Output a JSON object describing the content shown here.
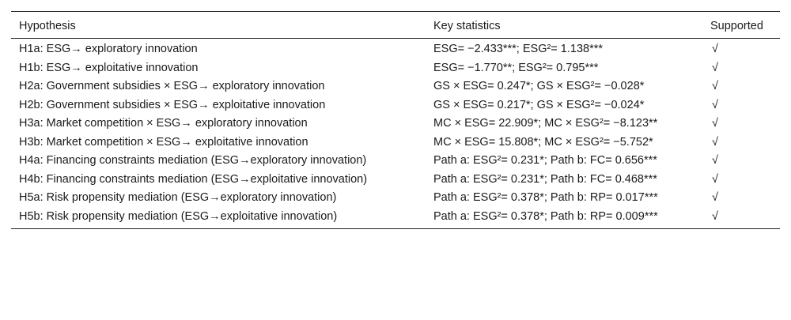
{
  "table": {
    "headers": {
      "hypothesis": "Hypothesis",
      "statistics": "Key statistics",
      "supported": "Supported"
    },
    "rows": [
      {
        "hypothesis": "H1a: ESG→ exploratory innovation",
        "statistics": "ESG= −2.433***; ESG²= 1.138***",
        "supported": "√"
      },
      {
        "hypothesis": "H1b: ESG→ exploitative innovation",
        "statistics": "ESG= −1.770**; ESG²= 0.795***",
        "supported": "√"
      },
      {
        "hypothesis": "H2a: Government subsidies × ESG→ exploratory innovation",
        "statistics": "GS × ESG= 0.247*; GS × ESG²= −0.028*",
        "supported": "√"
      },
      {
        "hypothesis": "H2b: Government subsidies × ESG→ exploitative innovation",
        "statistics": "GS × ESG= 0.217*; GS × ESG²= −0.024*",
        "supported": "√"
      },
      {
        "hypothesis": "H3a: Market competition × ESG→ exploratory innovation",
        "statistics": "MC × ESG= 22.909*; MC × ESG²= −8.123**",
        "supported": "√"
      },
      {
        "hypothesis": "H3b: Market competition × ESG→ exploitative innovation",
        "statistics": "MC × ESG= 15.808*; MC × ESG²= −5.752*",
        "supported": "√"
      },
      {
        "hypothesis": "H4a: Financing constraints mediation (ESG→exploratory innovation)",
        "statistics": "Path a: ESG²= 0.231*; Path b: FC= 0.656***",
        "supported": "√"
      },
      {
        "hypothesis": "H4b: Financing constraints mediation (ESG→exploitative innovation)",
        "statistics": "Path a: ESG²= 0.231*; Path b: FC= 0.468***",
        "supported": "√"
      },
      {
        "hypothesis": "H5a: Risk propensity mediation (ESG→exploratory innovation)",
        "statistics": "Path a: ESG²= 0.378*; Path b: RP= 0.017***",
        "supported": "√"
      },
      {
        "hypothesis": "H5b: Risk propensity mediation (ESG→exploitative innovation)",
        "statistics": "Path a: ESG²= 0.378*; Path b: RP= 0.009***",
        "supported": "√"
      }
    ]
  }
}
